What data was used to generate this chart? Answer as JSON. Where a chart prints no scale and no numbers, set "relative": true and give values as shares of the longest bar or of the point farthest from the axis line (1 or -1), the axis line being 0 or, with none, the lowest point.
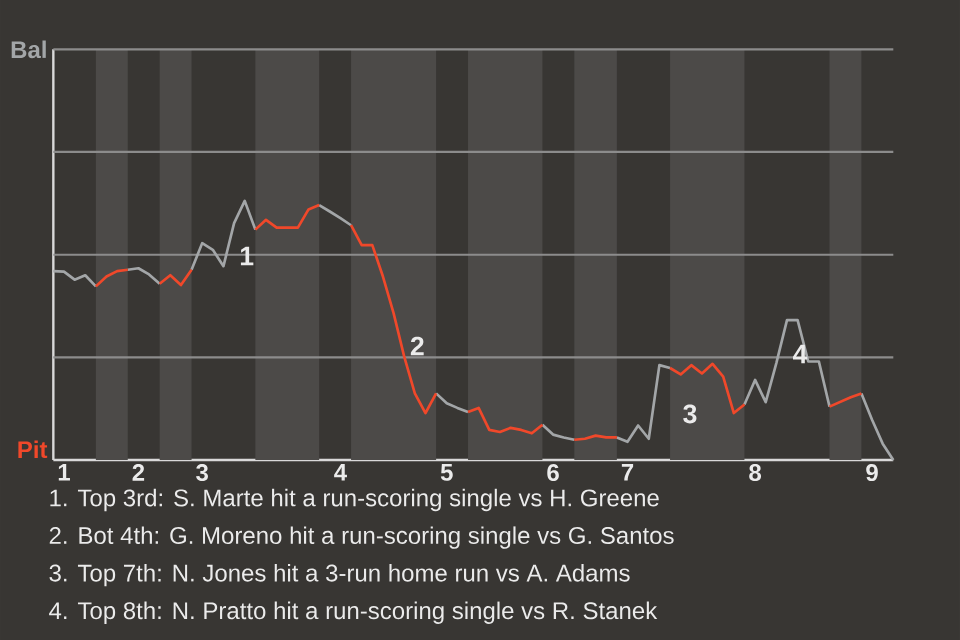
{
  "chart_data": {
    "type": "line",
    "relative": true,
    "ref_lines": [
      {
        "axis": "y",
        "value": 0.396,
        "color": "#8c8c8c"
      },
      {
        "axis": "y",
        "value": 0.792,
        "color": "#8c8c8c"
      },
      {
        "axis": "y",
        "value": 1.189,
        "color": "#8c8c8c"
      },
      {
        "axis": "y",
        "value": 1.585,
        "color": "#8c8c8c"
      }
    ],
    "categories": [
      null,
      "1",
      null,
      null,
      null,
      null,
      null,
      null,
      "2",
      null,
      null,
      null,
      null,
      null,
      "3",
      null,
      null,
      null,
      null,
      null,
      null,
      null,
      null,
      null,
      null,
      null,
      null,
      "4",
      null,
      null,
      null,
      null,
      null,
      null,
      null,
      null,
      null,
      "5",
      null,
      null,
      null,
      null,
      null,
      null,
      null,
      null,
      null,
      "6",
      null,
      null,
      null,
      null,
      null,
      null,
      "7",
      null,
      null,
      null,
      null,
      null,
      null,
      null,
      null,
      null,
      null,
      null,
      "8",
      null,
      null,
      null,
      null,
      null,
      null,
      null,
      null,
      null,
      null,
      "9",
      null,
      null
    ],
    "marker": "none",
    "line_style": "solid",
    "series": [
      {
        "color": "#a3a6a8",
        "values": [
          0.729,
          0.727,
          0.696,
          0.713,
          0.67,
          null,
          null,
          0.734,
          0.74,
          0.716,
          0.68,
          null,
          null,
          0.734,
          0.837,
          0.811,
          0.748,
          0.914,
          1,
          0.889,
          null,
          null,
          null,
          null,
          null,
          0.984,
          0.959,
          0.933,
          0.906,
          null,
          null,
          null,
          null,
          null,
          null,
          null,
          0.257,
          0.219,
          0.201,
          0.185,
          null,
          null,
          null,
          null,
          null,
          null,
          0.136,
          0.098,
          0.087,
          0.078,
          null,
          null,
          null,
          0.087,
          0.07,
          0.133,
          0.082,
          0.366,
          0.355,
          null,
          null,
          null,
          null,
          null,
          null,
          0.214,
          0.309,
          0.223,
          0.374,
          0.54,
          0.54,
          0.38,
          0.38,
          0.206,
          null,
          null,
          0.257,
          0.155,
          0.063,
          0
        ]
      },
      {
        "color": "#f0482a",
        "values": [
          null,
          null,
          null,
          null,
          0.67,
          0.708,
          0.729,
          0.734,
          null,
          null,
          0.68,
          0.713,
          0.675,
          0.734,
          null,
          null,
          null,
          null,
          null,
          0.889,
          0.927,
          0.897,
          0.897,
          0.897,
          0.967,
          0.984,
          null,
          null,
          0.906,
          0.829,
          0.829,
          0.708,
          0.567,
          0.399,
          0.257,
          0.181,
          0.257,
          null,
          null,
          0.185,
          0.201,
          0.116,
          0.108,
          0.124,
          0.116,
          0.103,
          0.136,
          null,
          null,
          0.078,
          0.082,
          0.094,
          0.087,
          0.087,
          null,
          null,
          null,
          null,
          0.355,
          0.33,
          0.366,
          0.334,
          0.371,
          0.322,
          0.181,
          0.214,
          null,
          null,
          null,
          null,
          null,
          null,
          null,
          0.206,
          0.224,
          0.242,
          0.257,
          null,
          null,
          null
        ]
      }
    ],
    "annotations": [
      "Bal",
      "Pit",
      "1",
      "2",
      "3",
      "4",
      "1. Top 3rd: S. Marte hit a run-scoring single vs H. Greene",
      "2. Bot 4th: G. Moreno hit a run-scoring single vs G. Santos",
      "3. Top 7th: N. Jones hit a 3-run home run vs A. Adams",
      "4. Top 8th: N. Pratto hit a run-scoring single vs R. Stanek"
    ]
  }
}
